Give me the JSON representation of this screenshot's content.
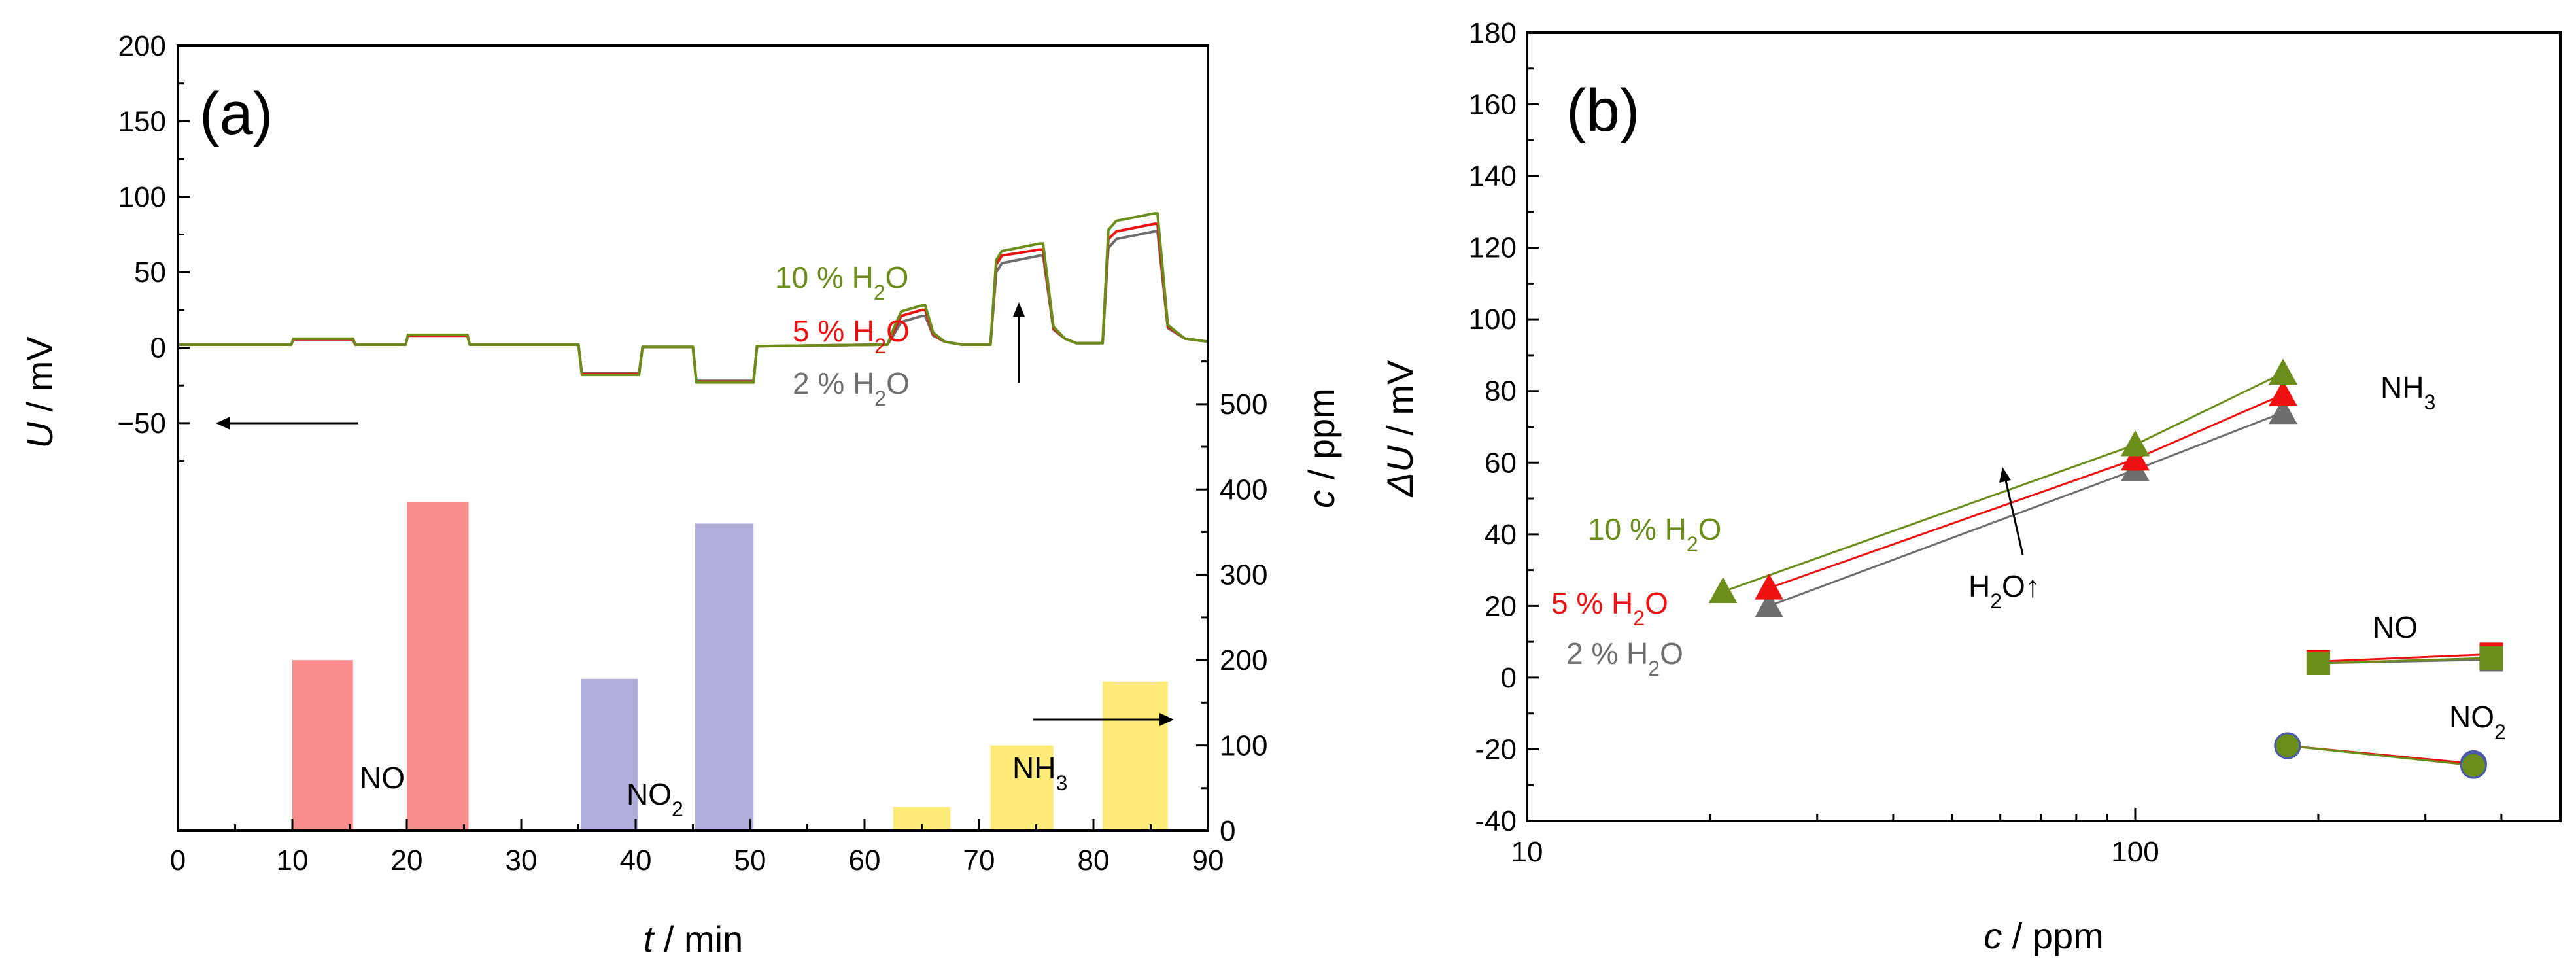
{
  "figure": {
    "panels": [
      {
        "label": "(a)"
      },
      {
        "label": "(b)"
      }
    ]
  },
  "chart_data": [
    {
      "type": "line",
      "panel": "(a)",
      "xlabel_var": "t",
      "xlabel_unit": " / min",
      "ylabel_var": "U",
      "ylabel_unit": " / mV",
      "y2label_var": "c",
      "y2label_unit": " / ppm",
      "xlim": [
        0,
        90
      ],
      "ylim": [
        -320,
        200
      ],
      "y2lim": [
        0,
        920
      ],
      "x_ticks": [
        0,
        10,
        20,
        30,
        40,
        50,
        60,
        70,
        80,
        90
      ],
      "y_ticks": [
        -50,
        0,
        50,
        100,
        150,
        200
      ],
      "y2_ticks": [
        0,
        100,
        200,
        300,
        400,
        500
      ],
      "series": [
        {
          "name": "2 % H2O",
          "name_main": "2 % H",
          "name_sub": "2",
          "name_tail": "O",
          "color": "#6e6e6e",
          "x": [
            0,
            9.9,
            10.1,
            15.3,
            15.5,
            19.9,
            20.1,
            25.3,
            25.5,
            35,
            35.3,
            40.3,
            40.6,
            45,
            45.3,
            50.3,
            50.6,
            62,
            62.5,
            63.2,
            65,
            65.3,
            66,
            67,
            68.5,
            71,
            71.5,
            72,
            75.3,
            75.6,
            76.5,
            77.5,
            78.5,
            80.8,
            81.3,
            82,
            85.3,
            85.6,
            86.5,
            88,
            90
          ],
          "y": [
            2,
            2,
            5.5,
            5.5,
            2,
            2,
            8,
            8,
            2,
            2,
            -17,
            -17,
            0.5,
            0.5,
            -22,
            -22,
            1,
            2,
            8,
            17,
            21,
            21,
            8,
            4,
            2,
            2,
            50,
            56,
            61,
            61,
            12,
            6,
            3,
            3,
            66,
            72,
            77,
            77,
            13,
            6,
            4
          ]
        },
        {
          "name": "5 % H2O",
          "name_main": "5 % H",
          "name_sub": "2",
          "name_tail": "O",
          "color": "#ee1111",
          "x": [
            0,
            9.9,
            10.1,
            15.3,
            15.5,
            19.9,
            20.1,
            25.3,
            25.5,
            35,
            35.3,
            40.3,
            40.6,
            45,
            45.3,
            50.3,
            50.6,
            62,
            62.5,
            63.2,
            65,
            65.3,
            66,
            67,
            68.5,
            71,
            71.5,
            72,
            75.3,
            75.6,
            76.5,
            77.5,
            78.5,
            80.8,
            81.3,
            82,
            85.3,
            85.6,
            86.5,
            88,
            90
          ],
          "y": [
            2,
            2,
            5.5,
            5.5,
            2,
            2,
            8,
            8,
            2,
            2,
            -17.5,
            -17.5,
            0.5,
            0.5,
            -22.5,
            -22.5,
            1,
            2,
            10,
            21,
            25,
            25,
            9,
            4,
            2,
            2,
            55,
            61,
            65,
            65,
            13,
            6,
            3,
            3,
            72,
            77,
            82,
            82,
            14,
            6,
            4
          ]
        },
        {
          "name": "10 % H2O",
          "name_main": "10 % H",
          "name_sub": "2",
          "name_tail": "O",
          "color": "#6b8e1a",
          "x": [
            0,
            9.9,
            10.1,
            15.3,
            15.5,
            19.9,
            20.1,
            25.3,
            25.5,
            35,
            35.3,
            40.3,
            40.6,
            45,
            45.3,
            50.3,
            50.6,
            62,
            62.5,
            63.2,
            65,
            65.3,
            66,
            67,
            68.5,
            71,
            71.5,
            72,
            75.3,
            75.6,
            76.5,
            77.5,
            78.5,
            80.8,
            81.3,
            82,
            85.3,
            85.6,
            86.5,
            88,
            90
          ],
          "y": [
            2,
            2,
            6,
            6,
            2,
            2,
            8.5,
            8.5,
            2,
            2,
            -18,
            -18,
            0.5,
            0.5,
            -23,
            -23,
            1,
            2,
            12,
            24,
            28,
            28,
            10,
            4,
            2,
            2,
            58,
            64,
            69,
            69,
            14,
            6,
            3,
            3,
            78,
            84,
            89,
            89,
            15,
            6,
            4
          ]
        }
      ],
      "gas_pulses": [
        {
          "gas": "NO",
          "start": 10,
          "end": 15.3,
          "ppm": 200,
          "color": "#f98c8c"
        },
        {
          "gas": "NO",
          "start": 20,
          "end": 25.4,
          "ppm": 385,
          "color": "#f98c8c"
        },
        {
          "gas": "NO2",
          "start": 35.2,
          "end": 40.2,
          "ppm": 178,
          "color": "#b3addb"
        },
        {
          "gas": "NO2",
          "start": 45.2,
          "end": 50.3,
          "ppm": 360,
          "color": "#b3addb"
        },
        {
          "gas": "NH3",
          "start": 62.5,
          "end": 67.5,
          "ppm": 28,
          "color": "#ffeb7a"
        },
        {
          "gas": "NH3",
          "start": 71,
          "end": 76.5,
          "ppm": 100,
          "color": "#ffeb7a"
        },
        {
          "gas": "NH3",
          "start": 80.8,
          "end": 86.5,
          "ppm": 175,
          "color": "#ffeb7a"
        }
      ],
      "annotations": {
        "no": "NO",
        "no2_main": "NO",
        "no2_sub": "2",
        "nh3_main": "NH",
        "nh3_sub": "3"
      }
    },
    {
      "type": "scatter",
      "panel": "(b)",
      "xlabel_var": "c",
      "xlabel_unit": " / ppm",
      "ylabel_var": "ΔU",
      "ylabel_unit": " / mV",
      "xscale": "log",
      "xlim": [
        10,
        500
      ],
      "ylim": [
        -40,
        180
      ],
      "x_ticks": [
        10,
        100
      ],
      "y_ticks": [
        -40,
        -20,
        0,
        20,
        40,
        60,
        80,
        100,
        120,
        140,
        160,
        180
      ],
      "series": [
        {
          "name": "NH3 2 % H2O",
          "gas": "NH3",
          "marker": "triangle",
          "color": "#6e6e6e",
          "x": [
            25,
            100,
            175
          ],
          "y": [
            20,
            58,
            74
          ]
        },
        {
          "name": "NH3 5 % H2O",
          "gas": "NH3",
          "marker": "triangle",
          "color": "#ee1111",
          "x": [
            25,
            100,
            175
          ],
          "y": [
            25,
            61,
            79
          ]
        },
        {
          "name": "NH3 10 % H2O",
          "gas": "NH3",
          "marker": "triangle",
          "color": "#6b8e1a",
          "x": [
            21,
            100,
            175
          ],
          "y": [
            24,
            65,
            85
          ]
        },
        {
          "name": "NO 2 % H2O",
          "gas": "NO",
          "marker": "square",
          "color": "#6e6e6e",
          "x": [
            200,
            385
          ],
          "y": [
            4,
            5
          ]
        },
        {
          "name": "NO 5 % H2O",
          "gas": "NO",
          "marker": "square",
          "color": "#ee1111",
          "x": [
            200,
            385
          ],
          "y": [
            4.5,
            6.5
          ]
        },
        {
          "name": "NO 10 % H2O",
          "gas": "NO",
          "marker": "square",
          "color": "#6b8e1a",
          "x": [
            200,
            385
          ],
          "y": [
            4,
            5.5
          ]
        },
        {
          "name": "NO2 2 % H2O",
          "gas": "NO2",
          "marker": "circle",
          "color": "#6e6e6e",
          "x": [
            178,
            360
          ],
          "y": [
            -19,
            -24
          ]
        },
        {
          "name": "NO2 5 % H2O",
          "gas": "NO2",
          "marker": "circle",
          "color": "#ee1111",
          "x": [
            178,
            360
          ],
          "y": [
            -19,
            -24
          ]
        },
        {
          "name": "NO2 10 % H2O",
          "gas": "NO2",
          "marker": "circle",
          "color": "#6b8e1a",
          "x": [
            178,
            360
          ],
          "y": [
            -19,
            -24.5
          ]
        }
      ],
      "annotations": {
        "nh3_main": "NH",
        "nh3_sub": "3",
        "no": "NO",
        "no2_main": "NO",
        "no2_sub": "2",
        "h2o_main": "H",
        "h2o_sub": "2",
        "h2o_tail": "O↑",
        "lbl10_main": "10 % H",
        "lbl10_sub": "2",
        "lbl10_tail": "O",
        "lbl5_main": "5 % H",
        "lbl5_sub": "2",
        "lbl5_tail": "O",
        "lbl2_main": "2 % H",
        "lbl2_sub": "2",
        "lbl2_tail": "O"
      }
    }
  ]
}
